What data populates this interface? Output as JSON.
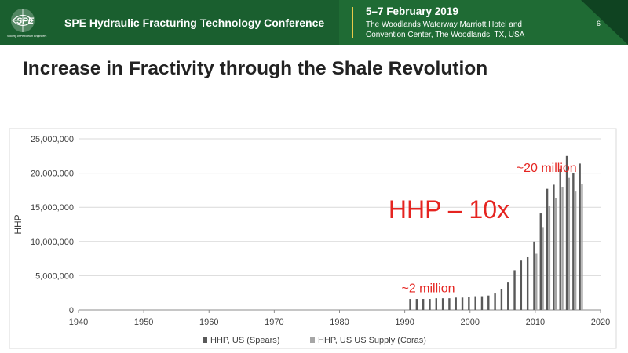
{
  "header": {
    "conference_title": "SPE Hydraulic Fracturing Technology Conference",
    "date": "5–7 February 2019",
    "venue_line1": "The Woodlands Waterway Marriott Hotel and",
    "venue_line2": "Convention Center, The Woodlands, TX, USA",
    "page_number": "6",
    "logo_text": "SPE",
    "logo_subtext": "Society of Petroleum Engineers"
  },
  "slide": {
    "title": "Increase in Fractivity through the Shale Revolution"
  },
  "colors": {
    "header_green": "#1f6b34",
    "accent_gold": "#e8c94a",
    "annotation_red": "#e52420",
    "series_dark": "#595959",
    "series_light": "#a6a6a6"
  },
  "chart_data": {
    "type": "bar",
    "title": "",
    "xlabel": "",
    "ylabel": "HHP",
    "xlim": [
      1940,
      2020
    ],
    "ylim": [
      0,
      25000000
    ],
    "xticks": [
      1940,
      1950,
      1960,
      1970,
      1980,
      1990,
      2000,
      2010,
      2020
    ],
    "xtick_labels": [
      "1940",
      "1950",
      "1960",
      "1970",
      "1980",
      "1990",
      "2000",
      "2010",
      "2020"
    ],
    "yticks": [
      0,
      5000000,
      10000000,
      15000000,
      20000000,
      25000000
    ],
    "ytick_labels": [
      "0",
      "5,000,000",
      "10,000,000",
      "15,000,000",
      "20,000,000",
      "25,000,000"
    ],
    "grid": "horizontal",
    "legend_position": "bottom",
    "series": [
      {
        "name": "HHP, US  (Spears)",
        "color": "#595959",
        "x": [
          1991,
          1992,
          1993,
          1994,
          1995,
          1996,
          1997,
          1998,
          1999,
          2000,
          2001,
          2002,
          2003,
          2004,
          2005,
          2006,
          2007,
          2008,
          2009,
          2010,
          2011,
          2012,
          2013,
          2014,
          2015,
          2016,
          2017
        ],
        "values": [
          1600000,
          1600000,
          1600000,
          1600000,
          1700000,
          1700000,
          1700000,
          1800000,
          1800000,
          1900000,
          2000000,
          2000000,
          2100000,
          2400000,
          3000000,
          4000000,
          5800000,
          7200000,
          7800000,
          10000000,
          14100000,
          17700000,
          18300000,
          20600000,
          22500000,
          20000000,
          21400000
        ]
      },
      {
        "name": "HHP, US US Supply (Coras)",
        "color": "#a6a6a6",
        "x": [
          2010,
          2011,
          2012,
          2013,
          2014,
          2015,
          2016,
          2017
        ],
        "values": [
          8200000,
          12000000,
          15200000,
          16300000,
          18000000,
          19300000,
          17300000,
          18400000
        ]
      }
    ],
    "annotations": [
      {
        "text": "~20 million",
        "x": 2007.1,
        "y": 20200000,
        "color": "#e52420",
        "size": "medium"
      },
      {
        "text": "HHP – 10x",
        "x": 1987.5,
        "y": 13400000,
        "color": "#e52420",
        "size": "large"
      },
      {
        "text": "~2 million",
        "x": 1989.5,
        "y": 2600000,
        "color": "#e52420",
        "size": "medium"
      }
    ]
  }
}
